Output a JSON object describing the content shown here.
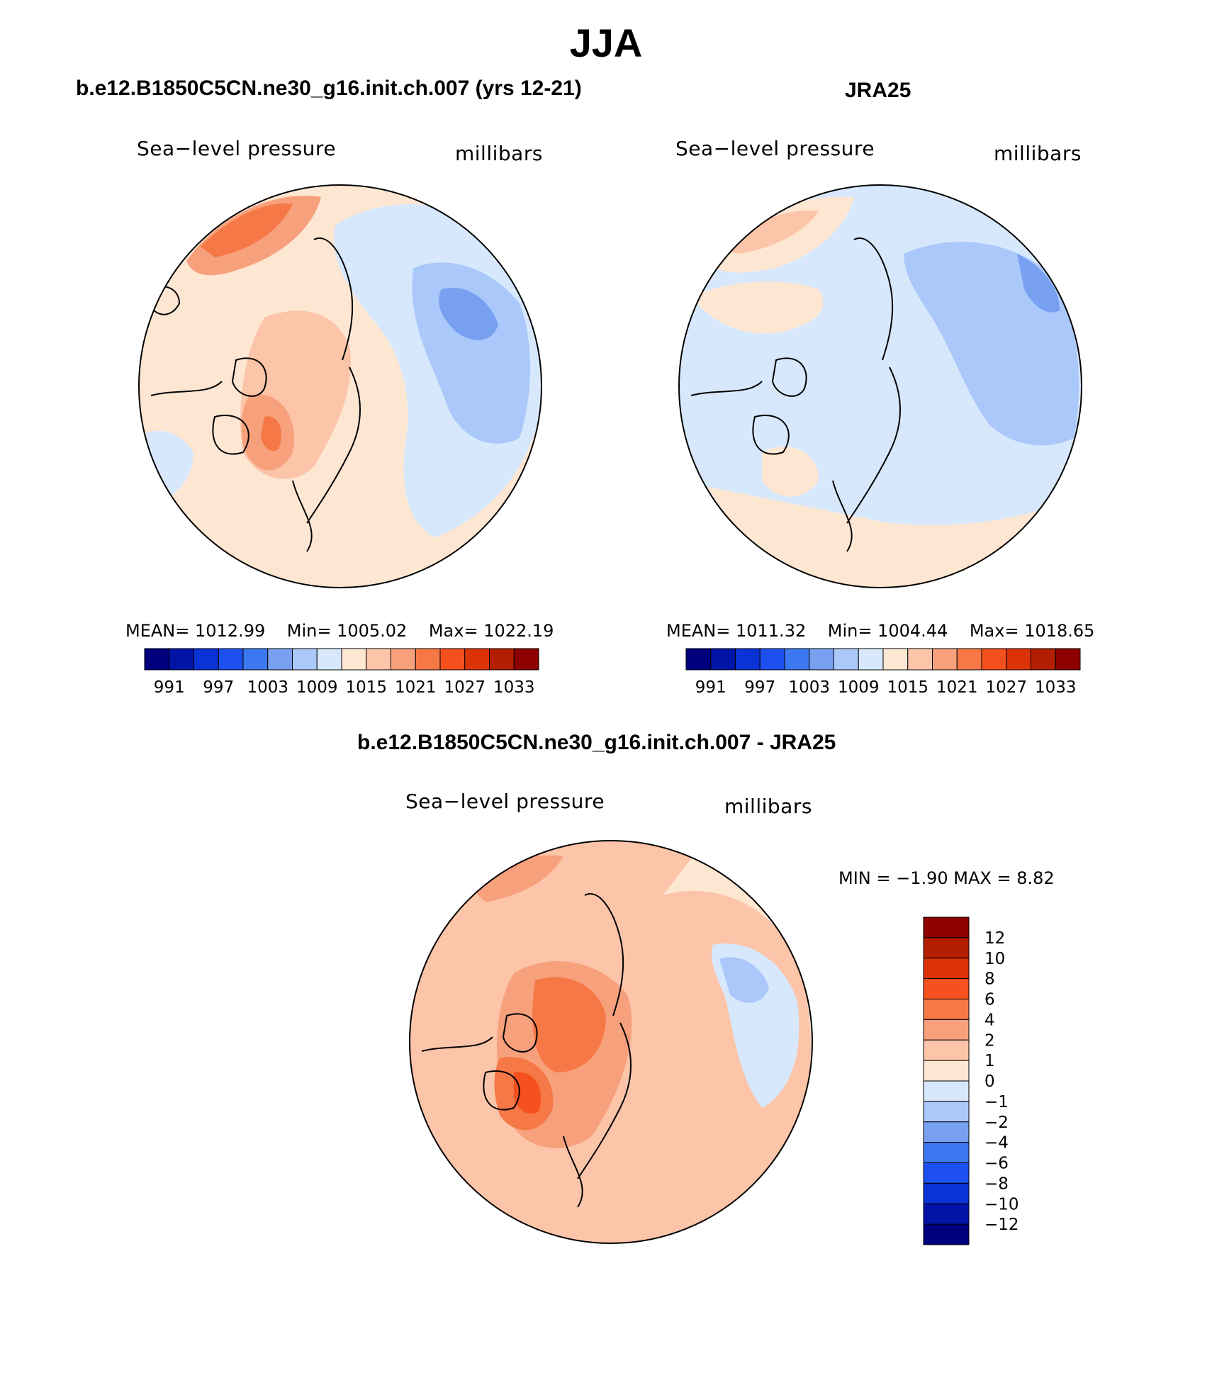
{
  "title": "JJA",
  "panels": [
    {
      "id": "model",
      "heading": "b.e12.B1850C5CN.ne30_g16.init.ch.007 (yrs 12-21)",
      "variable_label": "Sea−level pressure",
      "units_label": "millibars",
      "stats": {
        "mean": "MEAN=  1012.99",
        "min": "Min=  1005.02",
        "max": "Max=  1022.19"
      }
    },
    {
      "id": "obs",
      "heading": "JRA25",
      "variable_label": "Sea−level pressure",
      "units_label": "millibars",
      "stats": {
        "mean": "MEAN=  1011.32",
        "min": "Min=  1004.44",
        "max": "Max=  1018.65"
      }
    },
    {
      "id": "diff",
      "heading": "b.e12.B1850C5CN.ne30_g16.init.ch.007 - JRA25",
      "variable_label": "Sea−level pressure",
      "units_label": "millibars",
      "minmax": "MIN =   −1.90  MAX =     8.82"
    }
  ],
  "abs_colorbar": {
    "tick_labels": [
      "991",
      "997",
      "1003",
      "1009",
      "1015",
      "1021",
      "1027",
      "1033"
    ],
    "colors": [
      "#00007f",
      "#0014a8",
      "#0a32d4",
      "#1e50f0",
      "#3c78f0",
      "#78a0f0",
      "#aac8fa",
      "#d7e8fc",
      "#fde6d2",
      "#fcc4a8",
      "#f7a07c",
      "#f57846",
      "#f5501e",
      "#dc3208",
      "#b41e00",
      "#8c0000"
    ]
  },
  "diff_colorbar": {
    "tick_labels": [
      "12",
      "10",
      "8",
      "6",
      "4",
      "2",
      "1",
      "0",
      "−1",
      "−2",
      "−4",
      "−6",
      "−8",
      "−10",
      "−12"
    ],
    "colors": [
      "#8c0000",
      "#b41e00",
      "#dc3208",
      "#f5501e",
      "#f57846",
      "#f7a07c",
      "#fcc4a8",
      "#fde6d2",
      "#d7e8fc",
      "#aac8fa",
      "#78a0f0",
      "#3c78f0",
      "#1e50f0",
      "#0a32d4",
      "#0014a8",
      "#00007f"
    ]
  },
  "palette": {
    "ocean_low": "#d7e8fc",
    "low2": "#aac8fa",
    "low3": "#78a0f0",
    "high1": "#fde6d2",
    "high2": "#fcc4a8",
    "high3": "#f7a07c",
    "high4": "#f57846",
    "high5": "#f5501e"
  }
}
